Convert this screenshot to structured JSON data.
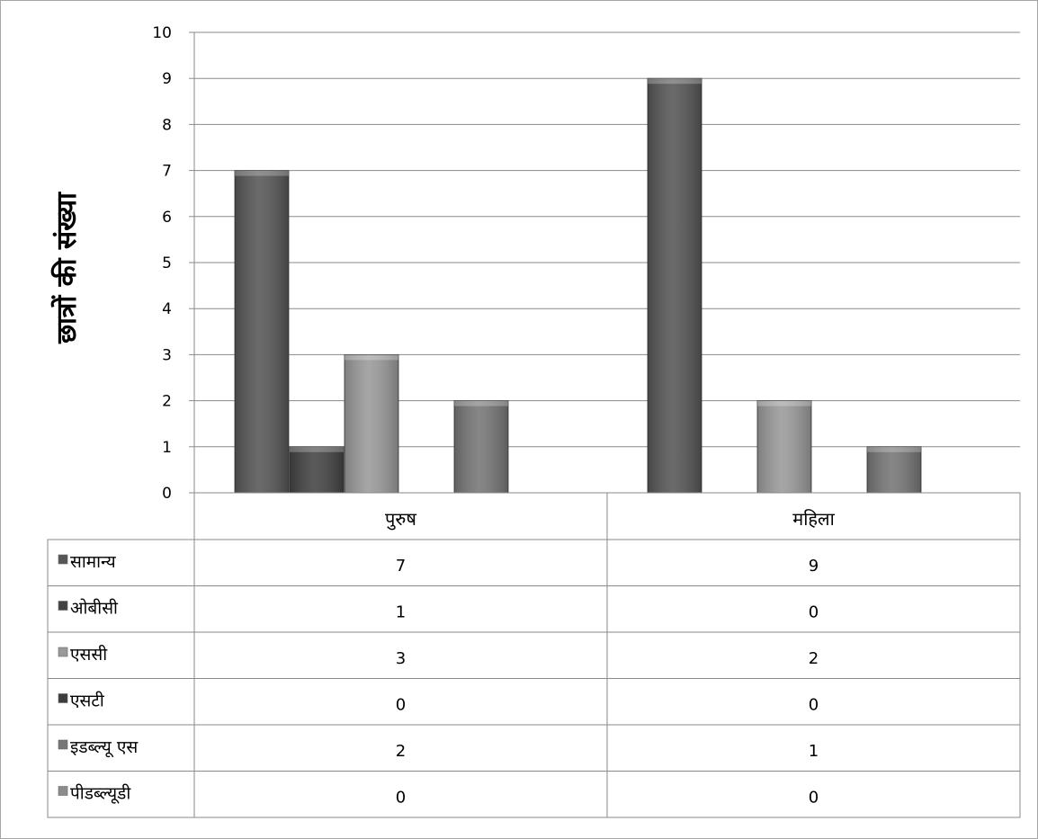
{
  "chart_data": {
    "type": "bar",
    "ylabel": "छात्रों की संख्या",
    "xlabel": "",
    "ylim": [
      0,
      10
    ],
    "yticks": [
      "0",
      "1",
      "2",
      "3",
      "4",
      "5",
      "6",
      "7",
      "8",
      "9",
      "10"
    ],
    "grid": true,
    "legend": "data-table-left",
    "categories": [
      "पुरुष",
      "महिला"
    ],
    "series": [
      {
        "name": "सामान्य",
        "values": [
          7,
          9
        ],
        "color": "#565656"
      },
      {
        "name": "ओबीसी",
        "values": [
          1,
          0
        ],
        "color": "#434343"
      },
      {
        "name": "एससी",
        "values": [
          3,
          2
        ],
        "color": "#9a9a9a"
      },
      {
        "name": "एसटी",
        "values": [
          0,
          0
        ],
        "color": "#3c3c3c"
      },
      {
        "name": "इडब्ल्यू एस",
        "values": [
          2,
          1
        ],
        "color": "#767676"
      },
      {
        "name": "पीडब्ल्यूडी",
        "values": [
          0,
          0
        ],
        "color": "#8c8c8c"
      }
    ],
    "table": {
      "rows": [
        [
          "7",
          "9"
        ],
        [
          "1",
          "0"
        ],
        [
          "3",
          "2"
        ],
        [
          "0",
          "0"
        ],
        [
          "2",
          "1"
        ],
        [
          "0",
          "0"
        ]
      ]
    }
  }
}
